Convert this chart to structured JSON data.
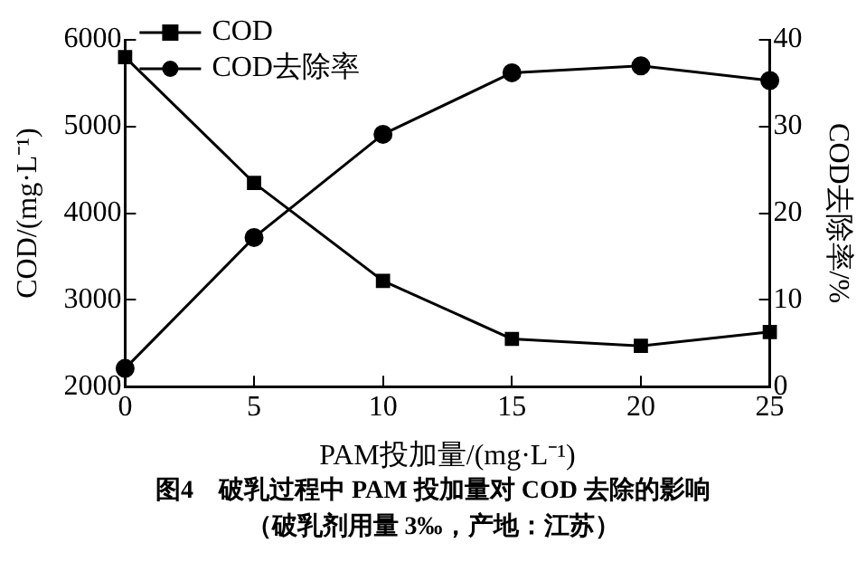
{
  "chart_data": {
    "type": "line",
    "title": "图4　破乳过程中 PAM 投加量对 COD 去除的影响",
    "subtitle": "（破乳剂用量 3‰，产地：江苏）",
    "xlabel": "PAM投加量/(mg·L⁻¹)",
    "ylabel": "COD/(mg·L⁻¹)",
    "y2label": "COD去除率/%",
    "x": [
      0,
      5,
      10,
      15,
      20,
      25
    ],
    "series": [
      {
        "name": "COD",
        "color": "#000000",
        "marker": "square",
        "values": [
          5800,
          4350,
          3220,
          2550,
          2470,
          2630
        ]
      },
      {
        "name": "COD去除率",
        "color": "#000000",
        "marker": "circle",
        "axis": "y2",
        "values": [
          2.1,
          17.2,
          29.1,
          36.2,
          37.0,
          35.3
        ]
      }
    ],
    "xlim": [
      0,
      25
    ],
    "xticks": [
      0,
      5,
      10,
      15,
      20,
      25
    ],
    "ylim": [
      2000,
      6000
    ],
    "yticks": [
      2000,
      3000,
      4000,
      5000,
      6000
    ],
    "y2lim": [
      0,
      40
    ],
    "y2ticks": [
      0,
      10,
      20,
      30,
      40
    ],
    "grid": false,
    "legend": "top left",
    "line_style": "solid"
  }
}
